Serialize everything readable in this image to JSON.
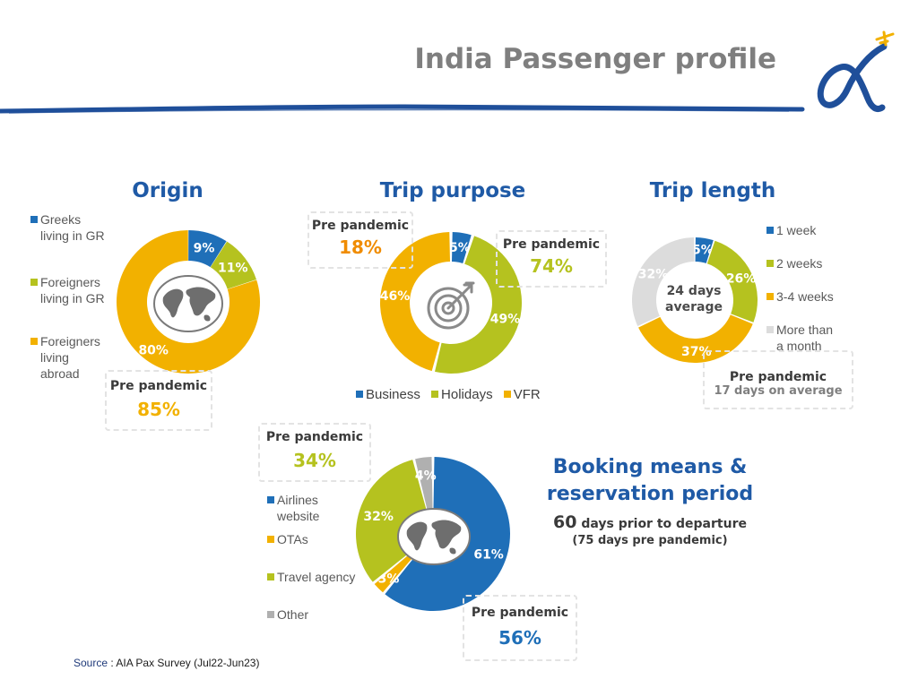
{
  "header": {
    "title": "India Passenger profile"
  },
  "source": {
    "prefix": "Source",
    "text": ": AIA Pax Survey (Jul22-Jun23)"
  },
  "colors": {
    "blue": "#1f6fb8",
    "green": "#b5c21f",
    "orange": "#f2b100",
    "gray": "#dcdcdc",
    "title_blue": "#1f5aa6",
    "orange_text": "#f08c00"
  },
  "icons": {
    "origin_center": "world-map-icon",
    "purpose_center": "target-icon",
    "booking_center": "world-map-icon",
    "logo": "airport-logo-icon"
  },
  "origin": {
    "title": "Origin",
    "pre_label": "Pre pandemic",
    "pre_value": "85%",
    "legend": [
      {
        "line1": "Greeks",
        "line2": "living in GR",
        "line3": ""
      },
      {
        "line1": "Foreigners",
        "line2": "living in GR",
        "line3": ""
      },
      {
        "line1": "Foreigners",
        "line2": "living",
        "line3": "abroad"
      }
    ]
  },
  "purpose": {
    "title": "Trip purpose",
    "pre_left_label": "Pre pandemic",
    "pre_left_value": "18%",
    "pre_right_label": "Pre pandemic",
    "pre_right_value": "74%",
    "legend": [
      "Business",
      "Holidays",
      "VFR"
    ]
  },
  "length": {
    "title": "Trip length",
    "center_line1": "24 days",
    "center_line2": "average",
    "pre_label": "Pre pandemic",
    "pre_sub": "17 days on average",
    "legend": [
      {
        "line1": "1 week",
        "line2": ""
      },
      {
        "line1": "2 weeks",
        "line2": ""
      },
      {
        "line1": "3-4 weeks",
        "line2": ""
      },
      {
        "line1": "More than",
        "line2": "a month"
      }
    ]
  },
  "booking": {
    "title_line1": "Booking means &",
    "title_line2": "reservation period",
    "days_value": "60",
    "days_text": "days prior to departure",
    "pre_text": "(75 days pre pandemic)",
    "pre_top_label": "Pre pandemic",
    "pre_top_value": "34%",
    "pre_bottom_label": "Pre pandemic",
    "pre_bottom_value": "56%",
    "legend": [
      {
        "line1": "Airlines",
        "line2": "website"
      },
      {
        "line1": "OTAs",
        "line2": ""
      },
      {
        "line1": "Travel agency",
        "line2": ""
      },
      {
        "line1": "Other",
        "line2": ""
      }
    ]
  },
  "chart_data": [
    {
      "type": "pie",
      "title": "Origin",
      "categories": [
        "Greeks living in GR",
        "Foreigners living in GR",
        "Foreigners living abroad"
      ],
      "values": [
        9,
        11,
        80
      ],
      "labels": [
        "9%",
        "11%",
        "80%"
      ],
      "colors": [
        "#1f6fb8",
        "#b5c21f",
        "#f2b100"
      ],
      "legend": "left"
    },
    {
      "type": "pie",
      "title": "Trip purpose",
      "categories": [
        "Business",
        "Holidays",
        "VFR"
      ],
      "values": [
        5,
        49,
        46
      ],
      "labels": [
        "5%",
        "49%",
        "46%"
      ],
      "colors": [
        "#1f6fb8",
        "#b5c21f",
        "#f2b100"
      ],
      "legend": "bottom"
    },
    {
      "type": "pie",
      "title": "Trip length",
      "categories": [
        "1 week",
        "2 weeks",
        "3-4 weeks",
        "More than a month"
      ],
      "values": [
        5,
        26,
        37,
        32
      ],
      "labels": [
        "5%",
        "26%",
        "37%",
        "32%"
      ],
      "colors": [
        "#1f6fb8",
        "#b5c21f",
        "#f2b100",
        "#dcdcdc"
      ],
      "legend": "right"
    },
    {
      "type": "pie",
      "title": "Booking means & reservation period",
      "categories": [
        "Airlines website",
        "OTAs",
        "Travel agency",
        "Other"
      ],
      "values": [
        61,
        3,
        32,
        4
      ],
      "labels": [
        "61%",
        "3%",
        "32%",
        "4%"
      ],
      "colors": [
        "#1f6fb8",
        "#f2b100",
        "#b5c21f",
        "#b0b0b0"
      ],
      "legend": "left"
    }
  ]
}
